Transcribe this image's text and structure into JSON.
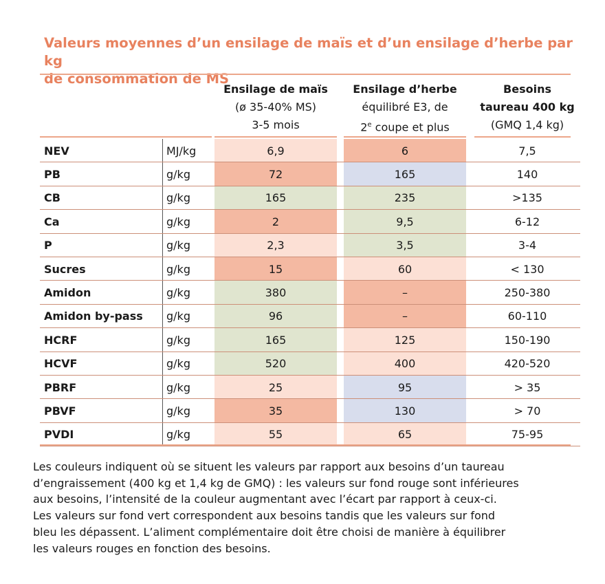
{
  "title": {
    "line1": "Valeurs moyennes d’un ensilage de maïs et d’un ensilage d’herbe par kg",
    "line2": "de consommation de MS"
  },
  "headers": {
    "mais": {
      "line1": "Ensilage de maïs",
      "line2": "(ø 35-40% MS)",
      "line3": "3-5 mois"
    },
    "herbe": {
      "line1": "Ensilage d’herbe",
      "line2": "équilibré E3, de",
      "line3_pre": "2",
      "line3_sup": "e",
      "line3_post": " coupe et plus"
    },
    "besoins": {
      "line1": "Besoins",
      "line2": "taureau 400 kg",
      "line3": "(GMQ 1,4 kg)"
    }
  },
  "colors": {
    "red_strong": "#f4b9a2",
    "red_light": "#fce0d5",
    "green": "#e0e5cf",
    "blue": "#d8dded",
    "accent": "#e8825f"
  },
  "rows": [
    {
      "name": "NEV",
      "unit": "MJ/kg",
      "mais": "6,9",
      "mais_color": "red_light",
      "herbe": "6",
      "herbe_color": "red_strong",
      "besoins": "7,5"
    },
    {
      "name": "PB",
      "unit": "g/kg",
      "mais": "72",
      "mais_color": "red_strong",
      "herbe": "165",
      "herbe_color": "blue",
      "besoins": "140"
    },
    {
      "name": "CB",
      "unit": "g/kg",
      "mais": "165",
      "mais_color": "green",
      "herbe": "235",
      "herbe_color": "green",
      "besoins": ">135"
    },
    {
      "name": "Ca",
      "unit": "g/kg",
      "mais": "2",
      "mais_color": "red_strong",
      "herbe": "9,5",
      "herbe_color": "green",
      "besoins": "6-12"
    },
    {
      "name": "P",
      "unit": "g/kg",
      "mais": "2,3",
      "mais_color": "red_light",
      "herbe": "3,5",
      "herbe_color": "green",
      "besoins": "3-4"
    },
    {
      "name": "Sucres",
      "unit": "g/kg",
      "mais": "15",
      "mais_color": "red_strong",
      "herbe": "60",
      "herbe_color": "red_light",
      "besoins": "< 130"
    },
    {
      "name": "Amidon",
      "unit": "g/kg",
      "mais": "380",
      "mais_color": "green",
      "herbe": "–",
      "herbe_color": "red_strong",
      "besoins": "250-380"
    },
    {
      "name": "Amidon by-pass",
      "unit": "g/kg",
      "mais": "96",
      "mais_color": "green",
      "herbe": "–",
      "herbe_color": "red_strong",
      "besoins": "60-110"
    },
    {
      "name": "HCRF",
      "unit": "g/kg",
      "mais": "165",
      "mais_color": "green",
      "herbe": "125",
      "herbe_color": "red_light",
      "besoins": "150-190"
    },
    {
      "name": "HCVF",
      "unit": "g/kg",
      "mais": "520",
      "mais_color": "green",
      "herbe": "400",
      "herbe_color": "red_light",
      "besoins": "420-520"
    },
    {
      "name": "PBRF",
      "unit": "g/kg",
      "mais": "25",
      "mais_color": "red_light",
      "herbe": "95",
      "herbe_color": "blue",
      "besoins": "> 35"
    },
    {
      "name": "PBVF",
      "unit": "g/kg",
      "mais": "35",
      "mais_color": "red_strong",
      "herbe": "130",
      "herbe_color": "blue",
      "besoins": "> 70"
    },
    {
      "name": "PVDI",
      "unit": "g/kg",
      "mais": "55",
      "mais_color": "red_light",
      "herbe": "65",
      "herbe_color": "red_light",
      "besoins": "75-95"
    }
  ],
  "note": [
    "Les couleurs indiquent où se situent les valeurs par rapport aux besoins d’un taureau",
    "d’engraissement (400 kg et 1,4 kg de GMQ) : les valeurs sur fond rouge sont inférieures",
    "aux besoins, l’intensité de la couleur augmentant avec l’écart par rapport à ceux-ci.",
    "Les valeurs sur fond vert correspondent aux besoins tandis que les valeurs sur fond",
    "bleu les dépassent. L’aliment complémentaire doit être choisi de manière à équilibrer",
    "les valeurs rouges en fonction des besoins."
  ]
}
